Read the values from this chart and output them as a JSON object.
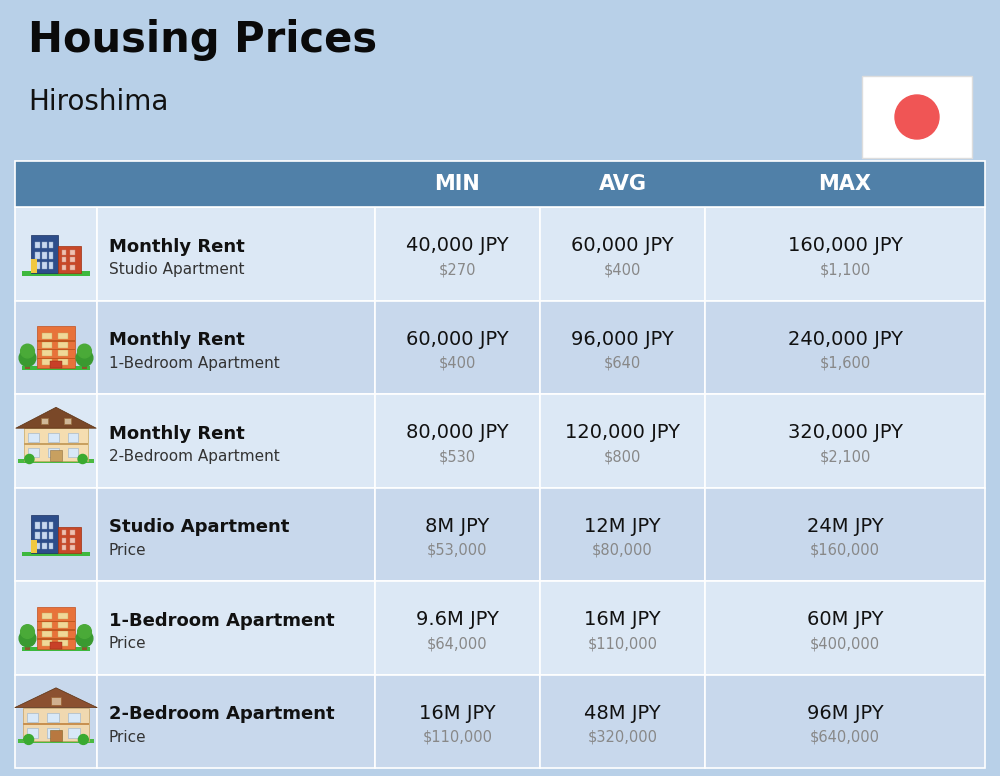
{
  "title": "Housing Prices",
  "subtitle": "Hiroshima",
  "background_color": "#b8d0e8",
  "header_bg_color": "#5080a8",
  "header_text_color": "#ffffff",
  "row_colors": [
    "#dce8f5",
    "#c8d8ec"
  ],
  "col_headers": [
    "MIN",
    "AVG",
    "MAX"
  ],
  "rows": [
    {
      "bold_label": "Monthly Rent",
      "sub_label": "Studio Apartment",
      "min_jpy": "40,000 JPY",
      "min_usd": "$270",
      "avg_jpy": "60,000 JPY",
      "avg_usd": "$400",
      "max_jpy": "160,000 JPY",
      "max_usd": "$1,100",
      "emoji": "studio_blue"
    },
    {
      "bold_label": "Monthly Rent",
      "sub_label": "1-Bedroom Apartment",
      "min_jpy": "60,000 JPY",
      "min_usd": "$400",
      "avg_jpy": "96,000 JPY",
      "avg_usd": "$640",
      "max_jpy": "240,000 JPY",
      "max_usd": "$1,600",
      "emoji": "apartment_orange"
    },
    {
      "bold_label": "Monthly Rent",
      "sub_label": "2-Bedroom Apartment",
      "min_jpy": "80,000 JPY",
      "min_usd": "$530",
      "avg_jpy": "120,000 JPY",
      "avg_usd": "$800",
      "max_jpy": "320,000 JPY",
      "max_usd": "$2,100",
      "emoji": "house_beige"
    },
    {
      "bold_label": "Studio Apartment",
      "sub_label": "Price",
      "min_jpy": "8M JPY",
      "min_usd": "$53,000",
      "avg_jpy": "12M JPY",
      "avg_usd": "$80,000",
      "max_jpy": "24M JPY",
      "max_usd": "$160,000",
      "emoji": "studio_blue"
    },
    {
      "bold_label": "1-Bedroom Apartment",
      "sub_label": "Price",
      "min_jpy": "9.6M JPY",
      "min_usd": "$64,000",
      "avg_jpy": "16M JPY",
      "avg_usd": "$110,000",
      "max_jpy": "60M JPY",
      "max_usd": "$400,000",
      "emoji": "apartment_orange"
    },
    {
      "bold_label": "2-Bedroom Apartment",
      "sub_label": "Price",
      "min_jpy": "16M JPY",
      "min_usd": "$110,000",
      "avg_jpy": "48M JPY",
      "avg_usd": "$320,000",
      "max_jpy": "96M JPY",
      "max_usd": "$640,000",
      "emoji": "house_brown"
    }
  ],
  "flag_circle_color": "#F05555",
  "title_fontsize": 30,
  "subtitle_fontsize": 20,
  "header_fontsize": 15,
  "jpy_fontsize": 14,
  "usd_fontsize": 10.5,
  "label_bold_fontsize": 13,
  "label_sub_fontsize": 11
}
